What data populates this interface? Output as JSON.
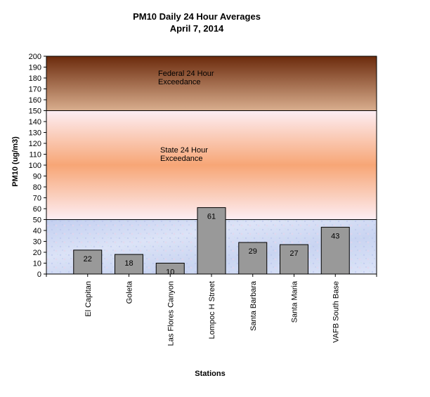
{
  "chart_data": {
    "type": "bar",
    "title": [
      "PM10 Daily 24 Hour Averages",
      "April 7, 2014"
    ],
    "xlabel": "Stations",
    "ylabel": "PM10 (ug/m3)",
    "ylim": [
      0,
      200
    ],
    "ytick_step": 10,
    "categories": [
      "El Capitan",
      "Goleta",
      "Las Flores Canyon",
      "Lompoc H Street",
      "Santa Barbara",
      "Santa Maria",
      "VAFB South Base"
    ],
    "values": [
      22,
      18,
      10,
      61,
      29,
      27,
      43
    ],
    "bar_color": "#999999",
    "bands": [
      {
        "from": 150,
        "to": 200,
        "label": [
          "Federal 24 Hour",
          "Exceedance"
        ],
        "colors": [
          "#6b2a0c",
          "#d9ae8e"
        ]
      },
      {
        "from": 50,
        "to": 150,
        "label": [
          "State 24 Hour",
          "Exceedance"
        ],
        "colors": [
          "#fde8f0",
          "#f7ab7c",
          "#fde8f0"
        ]
      },
      {
        "from": 0,
        "to": 50,
        "label": null,
        "colors": [
          "#c7d3f0",
          "#dfe6f8"
        ]
      }
    ],
    "grid": false,
    "legend": "none"
  }
}
